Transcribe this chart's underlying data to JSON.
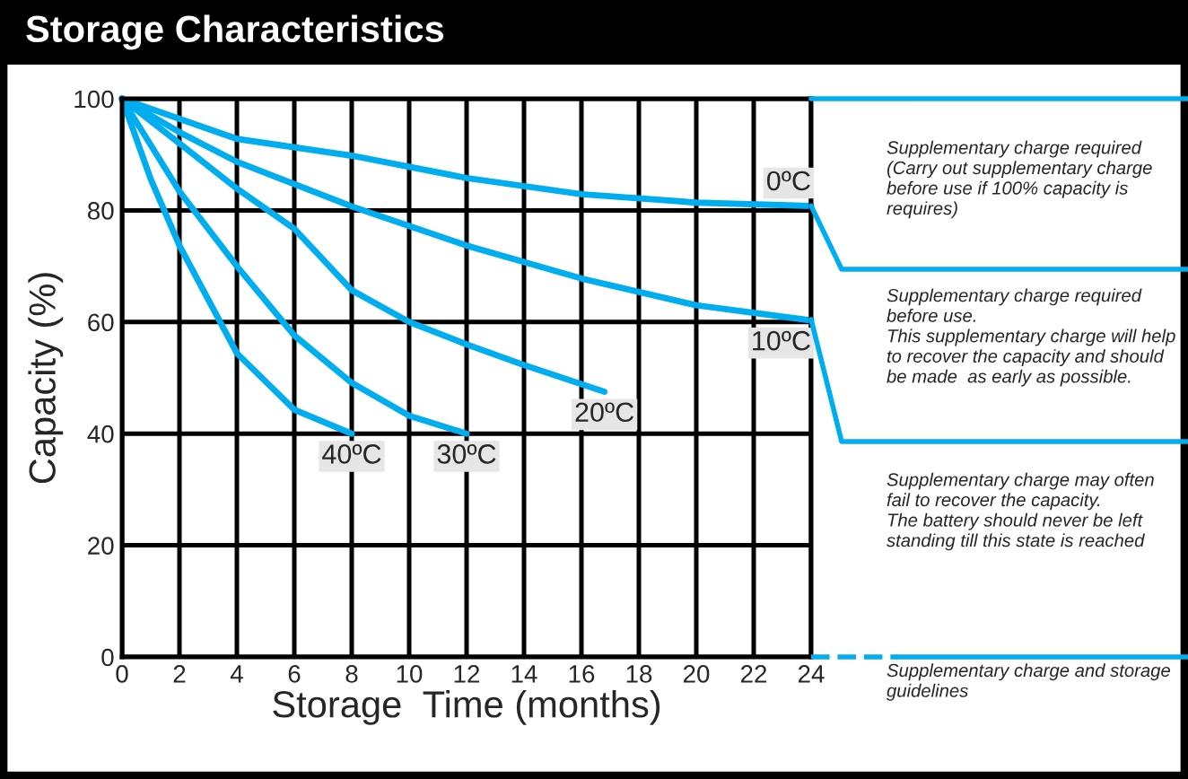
{
  "chart_data": {
    "type": "line",
    "title": "Storage Characteristics",
    "xlabel": "Storage  Time (months)",
    "ylabel": "Capacity (%)",
    "xlim": [
      0,
      24
    ],
    "xticks": [
      0,
      2,
      4,
      6,
      8,
      10,
      12,
      14,
      16,
      18,
      20,
      22,
      24
    ],
    "ylim": [
      0,
      100
    ],
    "yticks": [
      0,
      20,
      40,
      60,
      80,
      100
    ],
    "grid": true,
    "legend": false,
    "marker": "none",
    "line_style": "solid",
    "series": [
      {
        "name": "0ºC",
        "color": "#00aeef",
        "x": [
          0,
          4,
          8,
          12,
          16,
          20,
          24
        ],
        "values": [
          100,
          92.8,
          89.8,
          85.8,
          82.9,
          81.4,
          80.8
        ]
      },
      {
        "name": "10ºC",
        "color": "#00aeef",
        "x": [
          0,
          2,
          4,
          8,
          12,
          16,
          20,
          24
        ],
        "values": [
          100,
          94,
          88.7,
          80.7,
          73.7,
          67.8,
          63,
          60.3
        ]
      },
      {
        "name": "20ºC",
        "color": "#00aeef",
        "x": [
          0,
          2,
          4,
          6,
          8,
          10,
          12,
          14,
          16.8
        ],
        "values": [
          100,
          92,
          83.9,
          76.7,
          65.7,
          60,
          56,
          52.3,
          47.5
        ]
      },
      {
        "name": "30ºC",
        "color": "#00aeef",
        "x": [
          0,
          2,
          4,
          6,
          8,
          10,
          12
        ],
        "values": [
          100,
          83.4,
          70,
          57.6,
          49.1,
          43.2,
          40
        ]
      },
      {
        "name": "40ºC",
        "color": "#00aeef",
        "x": [
          0,
          1,
          2,
          4,
          6,
          8
        ],
        "values": [
          100,
          85.6,
          73.7,
          54.4,
          44.3,
          40
        ]
      }
    ],
    "annotations": [
      "Supplementary charge required\n(Carry out supplementary charge\nbefore use if 100% capacity is\nrequires)",
      "Supplementary charge required\nbefore use.\nThis supplementary charge will help\nto recover the capacity and should\nbe made  as early as possible.",
      "Supplementary charge may often\nfail to recover the capacity.\nThe battery should never be left\nstanding till this state is reached",
      "Supplementary charge and storage\nguidelines"
    ]
  }
}
